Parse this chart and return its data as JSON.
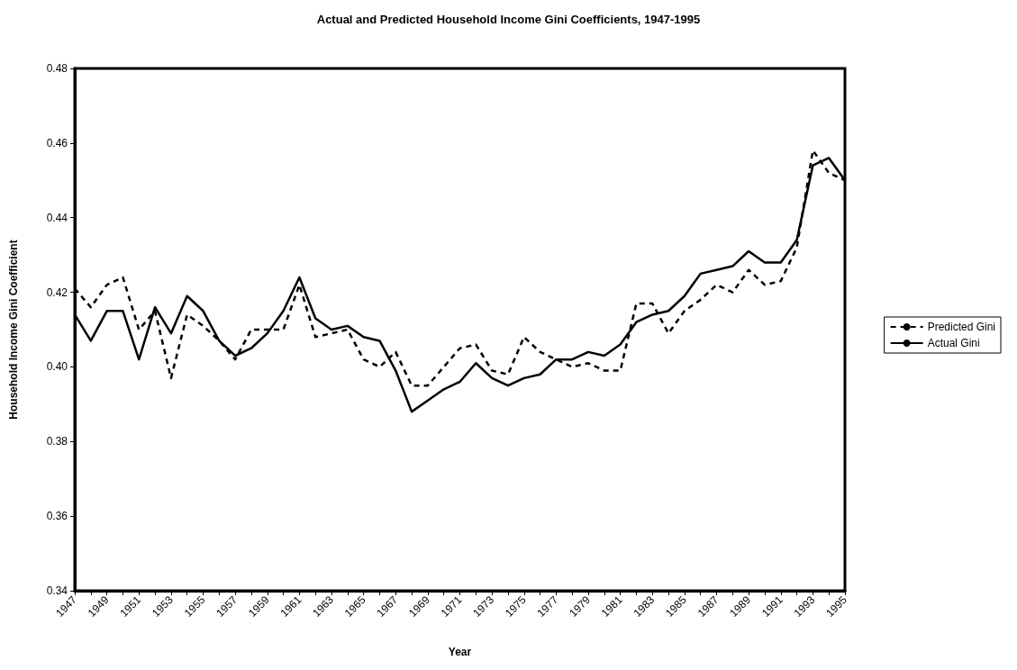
{
  "chart_data": {
    "type": "line",
    "title": "Actual and Predicted Household Income Gini Coefficients, 1947-1995",
    "xlabel": "Year",
    "ylabel": "Household Income Gini Coefficient",
    "categories": [
      "1947",
      null,
      "1949",
      null,
      "1951",
      null,
      "1953",
      null,
      "1955",
      null,
      "1957",
      null,
      "1959",
      null,
      "1961",
      null,
      "1963",
      null,
      "1965",
      null,
      "1967",
      null,
      "1969",
      null,
      "1971",
      null,
      "1973",
      null,
      "1975",
      null,
      "1977",
      null,
      "1979",
      null,
      "1981",
      null,
      "1983",
      null,
      "1985",
      null,
      "1987",
      null,
      "1989",
      null,
      "1991",
      null,
      "1993",
      null,
      "1995"
    ],
    "series": [
      {
        "name": "Predicted Gini",
        "color": "#000000",
        "line_style": "dashed",
        "values": [
          0.421,
          0.416,
          0.422,
          0.424,
          0.41,
          0.415,
          0.397,
          0.414,
          0.411,
          0.407,
          0.402,
          0.41,
          0.41,
          0.41,
          0.422,
          0.408,
          0.409,
          0.41,
          0.402,
          0.4,
          0.404,
          0.395,
          0.395,
          0.4,
          0.405,
          0.406,
          0.399,
          0.398,
          0.408,
          0.404,
          0.402,
          0.4,
          0.401,
          0.399,
          0.399,
          0.417,
          0.417,
          0.409,
          0.415,
          0.418,
          0.422,
          0.42,
          0.426,
          0.422,
          0.423,
          0.432,
          0.458,
          0.452,
          0.45
        ]
      },
      {
        "name": "Actual Gini",
        "color": "#000000",
        "line_style": "solid",
        "values": [
          0.414,
          0.407,
          0.415,
          0.415,
          0.402,
          0.416,
          0.409,
          0.419,
          0.415,
          0.407,
          0.403,
          0.405,
          0.409,
          0.415,
          0.424,
          0.413,
          0.41,
          0.411,
          0.408,
          0.407,
          0.399,
          0.388,
          0.391,
          0.394,
          0.396,
          0.401,
          0.397,
          0.395,
          0.397,
          0.398,
          0.402,
          0.402,
          0.404,
          0.403,
          0.406,
          0.412,
          0.414,
          0.415,
          0.419,
          0.425,
          0.426,
          0.427,
          0.431,
          0.428,
          0.428,
          0.434,
          0.454,
          0.456,
          0.45
        ]
      }
    ],
    "ylim": [
      0.34,
      0.48
    ],
    "yticks": [
      0.34,
      0.36,
      0.38,
      {
        "value": 0.4,
        "label": "0.40"
      },
      0.42,
      0.44,
      0.46,
      0.48
    ],
    "grid": false,
    "legend": "right",
    "marker": "none"
  }
}
